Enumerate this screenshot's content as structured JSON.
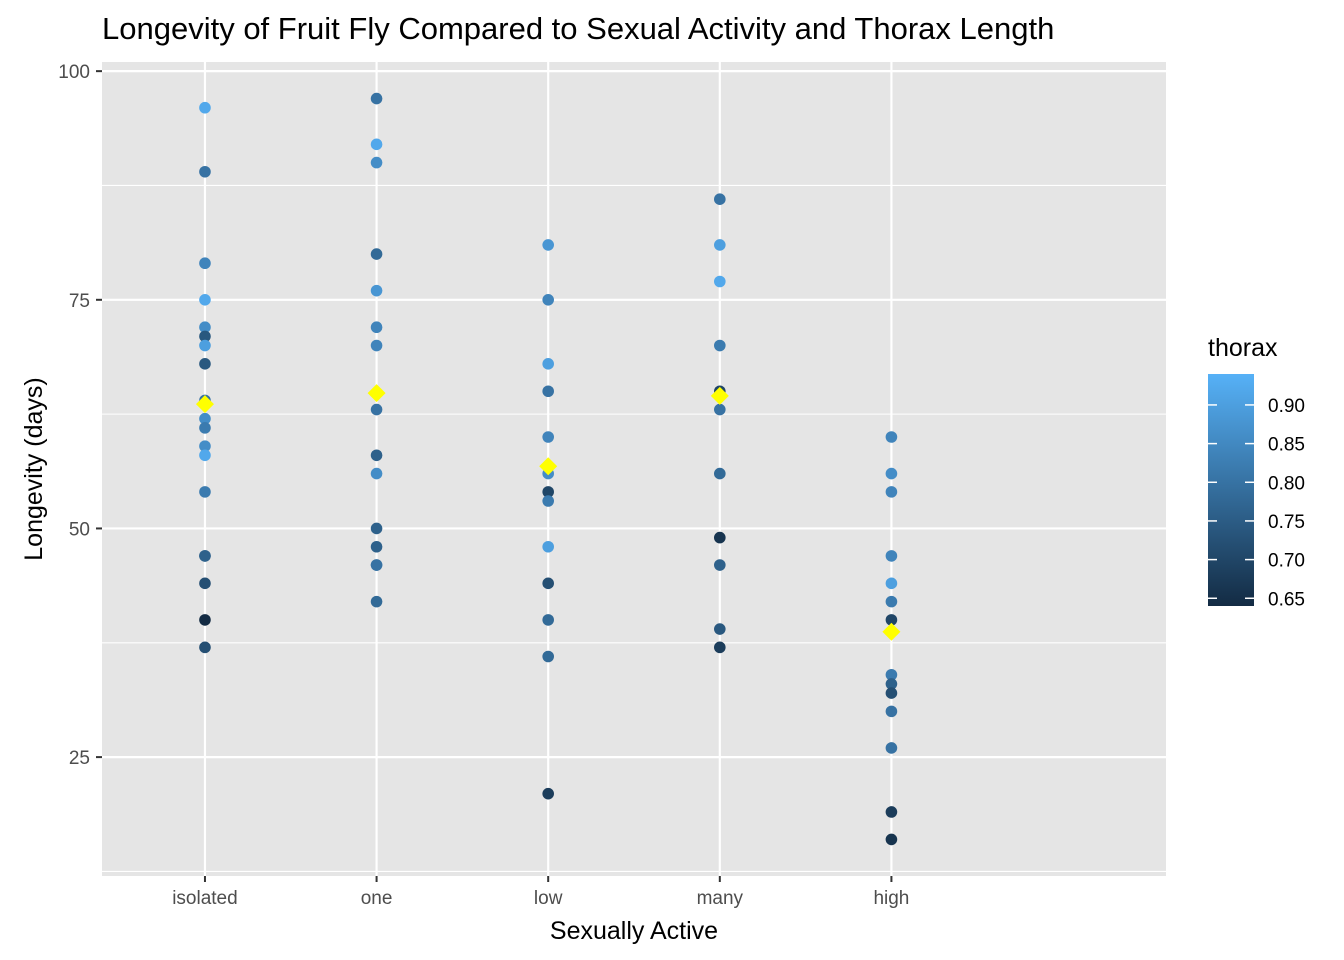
{
  "chart_data": {
    "type": "scatter",
    "title": "Longevity of Fruit Fly Compared to Sexual Activity and Thorax Length",
    "xlabel": "Sexually Active",
    "ylabel": "Longevity (days)",
    "categories": [
      "isolated",
      "one",
      "low",
      "many",
      "high"
    ],
    "ylim": [
      12,
      101
    ],
    "yticks": [
      25,
      50,
      75,
      100
    ],
    "grid": true,
    "legend": {
      "title": "thorax",
      "placement": "right",
      "range": [
        0.64,
        0.94
      ],
      "ticks": [
        0.65,
        0.7,
        0.75,
        0.8,
        0.85,
        0.9
      ],
      "tick_labels": [
        "0.65",
        "0.70",
        "0.75",
        "0.80",
        "0.85",
        "0.90"
      ],
      "color_low": "#132B43",
      "color_high": "#56B1F7"
    },
    "points": [
      {
        "group": "isolated",
        "longevity": 96,
        "thorax": 0.92
      },
      {
        "group": "isolated",
        "longevity": 89,
        "thorax": 0.8
      },
      {
        "group": "isolated",
        "longevity": 79,
        "thorax": 0.84
      },
      {
        "group": "isolated",
        "longevity": 75,
        "thorax": 0.92
      },
      {
        "group": "isolated",
        "longevity": 72,
        "thorax": 0.86
      },
      {
        "group": "isolated",
        "longevity": 71,
        "thorax": 0.74
      },
      {
        "group": "isolated",
        "longevity": 70,
        "thorax": 0.9
      },
      {
        "group": "isolated",
        "longevity": 68,
        "thorax": 0.74
      },
      {
        "group": "isolated",
        "longevity": 64,
        "thorax": 0.8
      },
      {
        "group": "isolated",
        "longevity": 62,
        "thorax": 0.86
      },
      {
        "group": "isolated",
        "longevity": 61,
        "thorax": 0.82
      },
      {
        "group": "isolated",
        "longevity": 59,
        "thorax": 0.86
      },
      {
        "group": "isolated",
        "longevity": 58,
        "thorax": 0.92
      },
      {
        "group": "isolated",
        "longevity": 54,
        "thorax": 0.82
      },
      {
        "group": "isolated",
        "longevity": 47,
        "thorax": 0.78
      },
      {
        "group": "isolated",
        "longevity": 47,
        "thorax": 0.76
      },
      {
        "group": "isolated",
        "longevity": 44,
        "thorax": 0.72
      },
      {
        "group": "isolated",
        "longevity": 40,
        "thorax": 0.64
      },
      {
        "group": "isolated",
        "longevity": 37,
        "thorax": 0.72
      },
      {
        "group": "one",
        "longevity": 97,
        "thorax": 0.8
      },
      {
        "group": "one",
        "longevity": 92,
        "thorax": 0.92
      },
      {
        "group": "one",
        "longevity": 90,
        "thorax": 0.86
      },
      {
        "group": "one",
        "longevity": 80,
        "thorax": 0.78
      },
      {
        "group": "one",
        "longevity": 76,
        "thorax": 0.88
      },
      {
        "group": "one",
        "longevity": 72,
        "thorax": 0.84
      },
      {
        "group": "one",
        "longevity": 70,
        "thorax": 0.84
      },
      {
        "group": "one",
        "longevity": 63,
        "thorax": 0.8
      },
      {
        "group": "one",
        "longevity": 58,
        "thorax": 0.76
      },
      {
        "group": "one",
        "longevity": 56,
        "thorax": 0.86
      },
      {
        "group": "one",
        "longevity": 50,
        "thorax": 0.76
      },
      {
        "group": "one",
        "longevity": 48,
        "thorax": 0.76
      },
      {
        "group": "one",
        "longevity": 46,
        "thorax": 0.82
      },
      {
        "group": "one",
        "longevity": 46,
        "thorax": 0.8
      },
      {
        "group": "one",
        "longevity": 42,
        "thorax": 0.78
      },
      {
        "group": "low",
        "longevity": 81,
        "thorax": 0.88
      },
      {
        "group": "low",
        "longevity": 75,
        "thorax": 0.84
      },
      {
        "group": "low",
        "longevity": 68,
        "thorax": 0.9
      },
      {
        "group": "low",
        "longevity": 65,
        "thorax": 0.8
      },
      {
        "group": "low",
        "longevity": 60,
        "thorax": 0.84
      },
      {
        "group": "low",
        "longevity": 56,
        "thorax": 0.86
      },
      {
        "group": "low",
        "longevity": 54,
        "thorax": 0.7
      },
      {
        "group": "low",
        "longevity": 53,
        "thorax": 0.82
      },
      {
        "group": "low",
        "longevity": 48,
        "thorax": 0.9
      },
      {
        "group": "low",
        "longevity": 44,
        "thorax": 0.72
      },
      {
        "group": "low",
        "longevity": 40,
        "thorax": 0.78
      },
      {
        "group": "low",
        "longevity": 36,
        "thorax": 0.78
      },
      {
        "group": "low",
        "longevity": 21,
        "thorax": 0.68
      },
      {
        "group": "many",
        "longevity": 86,
        "thorax": 0.8
      },
      {
        "group": "many",
        "longevity": 81,
        "thorax": 0.9
      },
      {
        "group": "many",
        "longevity": 77,
        "thorax": 0.92
      },
      {
        "group": "many",
        "longevity": 70,
        "thorax": 0.82
      },
      {
        "group": "many",
        "longevity": 65,
        "thorax": 0.7
      },
      {
        "group": "many",
        "longevity": 63,
        "thorax": 0.8
      },
      {
        "group": "many",
        "longevity": 56,
        "thorax": 0.78
      },
      {
        "group": "many",
        "longevity": 49,
        "thorax": 0.66
      },
      {
        "group": "many",
        "longevity": 46,
        "thorax": 0.76
      },
      {
        "group": "many",
        "longevity": 39,
        "thorax": 0.74
      },
      {
        "group": "many",
        "longevity": 37,
        "thorax": 0.68
      },
      {
        "group": "high",
        "longevity": 60,
        "thorax": 0.84
      },
      {
        "group": "high",
        "longevity": 56,
        "thorax": 0.86
      },
      {
        "group": "high",
        "longevity": 54,
        "thorax": 0.84
      },
      {
        "group": "high",
        "longevity": 47,
        "thorax": 0.84
      },
      {
        "group": "high",
        "longevity": 44,
        "thorax": 0.9
      },
      {
        "group": "high",
        "longevity": 42,
        "thorax": 0.82
      },
      {
        "group": "high",
        "longevity": 40,
        "thorax": 0.7
      },
      {
        "group": "high",
        "longevity": 34,
        "thorax": 0.82
      },
      {
        "group": "high",
        "longevity": 33,
        "thorax": 0.76
      },
      {
        "group": "high",
        "longevity": 32,
        "thorax": 0.72
      },
      {
        "group": "high",
        "longevity": 30,
        "thorax": 0.8
      },
      {
        "group": "high",
        "longevity": 26,
        "thorax": 0.8
      },
      {
        "group": "high",
        "longevity": 19,
        "thorax": 0.68
      },
      {
        "group": "high",
        "longevity": 16,
        "thorax": 0.66
      }
    ],
    "means": [
      {
        "group": "isolated",
        "longevity": 63.6
      },
      {
        "group": "one",
        "longevity": 64.8
      },
      {
        "group": "low",
        "longevity": 56.8
      },
      {
        "group": "many",
        "longevity": 64.5
      },
      {
        "group": "high",
        "longevity": 38.7
      }
    ],
    "mean_color": "#FFFF00",
    "panel_color": "#E5E5E5",
    "grid_color": "#FFFFFF"
  }
}
